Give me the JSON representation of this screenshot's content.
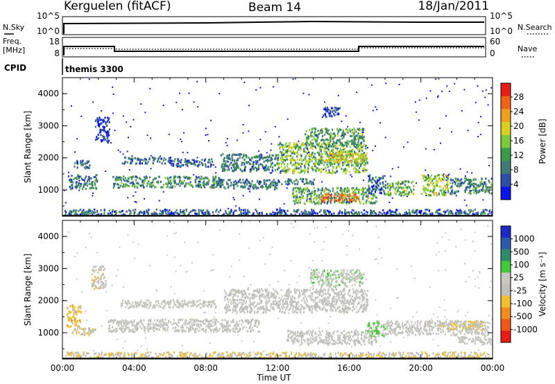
{
  "header": {
    "station": "Kerguelen (fitACF)",
    "beam": "Beam 14",
    "date": "18/Jan/2011"
  },
  "strip": {
    "nsky_label": "N.Sky",
    "nsearch_label": "N.Search",
    "freq_label_1": "Freq.",
    "freq_label_2": "[MHz]",
    "nave_label": "Nave",
    "cpid_label": "CPID",
    "cpid_value": "themis 3300",
    "left_ticks_top": [
      "10^5",
      "10^0"
    ],
    "right_ticks_top": [
      "10^5",
      "10^0"
    ],
    "left_ticks_freq": [
      "18",
      "8"
    ],
    "right_ticks_nave": [
      "60",
      "0"
    ]
  },
  "chart_data": [
    {
      "type": "heatmap",
      "title": "",
      "xlabel": "Time UT",
      "ylabel": "Slant Range [km]",
      "xlim": [
        0,
        24
      ],
      "ylim": [
        180,
        4500
      ],
      "x_ticks": [
        "00:00",
        "04:00",
        "08:00",
        "12:00",
        "16:00",
        "20:00",
        "00:00"
      ],
      "y_ticks": [
        "1000",
        "2000",
        "3000",
        "4000"
      ],
      "colorbar": {
        "label": "Power [dB]",
        "tick_labels": [
          "4",
          "8",
          "12",
          "16",
          "20",
          "24",
          "28"
        ],
        "range": [
          0,
          30
        ],
        "colors": [
          "#0a14e6",
          "#2f4ea8",
          "#3f7a74",
          "#3c9a4a",
          "#7ec83c",
          "#d7d020",
          "#f0a020",
          "#f06418",
          "#e81c14"
        ]
      },
      "echo_regions": [
        {
          "t0": 0.1,
          "t1": 24.0,
          "r0": 200,
          "r1": 420,
          "level": 6
        },
        {
          "t0": 0.3,
          "t1": 1.9,
          "r0": 1050,
          "r1": 1500,
          "level": 8
        },
        {
          "t0": 0.6,
          "t1": 1.5,
          "r0": 1700,
          "r1": 1950,
          "level": 6
        },
        {
          "t0": 2.8,
          "t1": 8.8,
          "r0": 1100,
          "r1": 1450,
          "level": 10
        },
        {
          "t0": 3.3,
          "t1": 6.0,
          "r0": 1850,
          "r1": 2050,
          "level": 7
        },
        {
          "t0": 6.0,
          "t1": 8.4,
          "r0": 1750,
          "r1": 2000,
          "level": 6
        },
        {
          "t0": 8.5,
          "t1": 12.0,
          "r0": 1050,
          "r1": 1350,
          "level": 8
        },
        {
          "t0": 8.8,
          "t1": 12.0,
          "r0": 1600,
          "r1": 2150,
          "level": 8
        },
        {
          "t0": 12.0,
          "t1": 17.0,
          "r0": 1550,
          "r1": 2500,
          "level": 14
        },
        {
          "t0": 13.5,
          "t1": 16.8,
          "r0": 2400,
          "r1": 2950,
          "level": 12
        },
        {
          "t0": 14.5,
          "t1": 17.0,
          "r0": 1900,
          "r1": 2200,
          "level": 19
        },
        {
          "t0": 12.0,
          "t1": 14.0,
          "r0": 1200,
          "r1": 1380,
          "level": 8
        },
        {
          "t0": 12.8,
          "t1": 17.5,
          "r0": 600,
          "r1": 1100,
          "level": 12
        },
        {
          "t0": 14.3,
          "t1": 16.6,
          "r0": 650,
          "r1": 900,
          "level": 24
        },
        {
          "t0": 17.0,
          "t1": 18.0,
          "r0": 900,
          "r1": 1500,
          "level": 6
        },
        {
          "t0": 18.0,
          "t1": 19.6,
          "r0": 850,
          "r1": 1300,
          "level": 14
        },
        {
          "t0": 20.0,
          "t1": 21.5,
          "r0": 850,
          "r1": 1500,
          "level": 16
        },
        {
          "t0": 21.6,
          "t1": 24.0,
          "r0": 900,
          "r1": 1400,
          "level": 10
        },
        {
          "t0": 1.8,
          "t1": 2.6,
          "r0": 2500,
          "r1": 3300,
          "level": 4
        },
        {
          "t0": 14.5,
          "t1": 15.5,
          "r0": 3300,
          "r1": 3600,
          "level": 5
        }
      ]
    },
    {
      "type": "heatmap",
      "title": "",
      "xlabel": "Time UT",
      "ylabel": "Slant Range [km]",
      "xlim": [
        0,
        24
      ],
      "ylim": [
        180,
        4500
      ],
      "x_ticks": [
        "00:00",
        "04:00",
        "08:00",
        "12:00",
        "16:00",
        "20:00",
        "00:00"
      ],
      "y_ticks": [
        "1000",
        "2000",
        "3000",
        "4000"
      ],
      "colorbar": {
        "label": "Velocity [m s⁻¹]",
        "tick_labels": [
          "1000",
          "500",
          "100",
          "25",
          "-25",
          "-100",
          "-500",
          "-1000"
        ],
        "range": [
          -1000,
          1000
        ],
        "colors": [
          "#1c28c8",
          "#2e5aa8",
          "#2e8c6c",
          "#44c83c",
          "#c8c8c0",
          "#c0c0b8",
          "#f0c030",
          "#f08c20",
          "#f05818",
          "#e81c14"
        ]
      },
      "echo_regions": [
        {
          "t0": 0.1,
          "t1": 24.0,
          "r0": 200,
          "r1": 420,
          "level": -150
        },
        {
          "t0": 0.2,
          "t1": 1.0,
          "r0": 1200,
          "r1": 1900,
          "level": -300
        },
        {
          "t0": 0.5,
          "t1": 1.8,
          "r0": 950,
          "r1": 1200,
          "level": -150
        },
        {
          "t0": 2.5,
          "t1": 11.0,
          "r0": 1050,
          "r1": 1450,
          "level": 0
        },
        {
          "t0": 3.2,
          "t1": 8.6,
          "r0": 1800,
          "r1": 2050,
          "level": 0
        },
        {
          "t0": 9.0,
          "t1": 17.0,
          "r0": 1650,
          "r1": 2400,
          "level": 0
        },
        {
          "t0": 13.8,
          "t1": 16.8,
          "r0": 2450,
          "r1": 3000,
          "level": 150
        },
        {
          "t0": 12.5,
          "t1": 17.5,
          "r0": 650,
          "r1": 1100,
          "level": 0
        },
        {
          "t0": 17.0,
          "t1": 18.0,
          "r0": 900,
          "r1": 1400,
          "level": 200
        },
        {
          "t0": 18.0,
          "t1": 23.8,
          "r0": 950,
          "r1": 1400,
          "level": 0
        },
        {
          "t0": 21.0,
          "t1": 23.5,
          "r0": 1100,
          "r1": 1400,
          "level": -200
        },
        {
          "t0": 22.0,
          "t1": 24.0,
          "r0": 650,
          "r1": 900,
          "level": 20
        },
        {
          "t0": 1.6,
          "t1": 2.4,
          "r0": 2400,
          "r1": 3100,
          "level": -120
        }
      ]
    }
  ]
}
